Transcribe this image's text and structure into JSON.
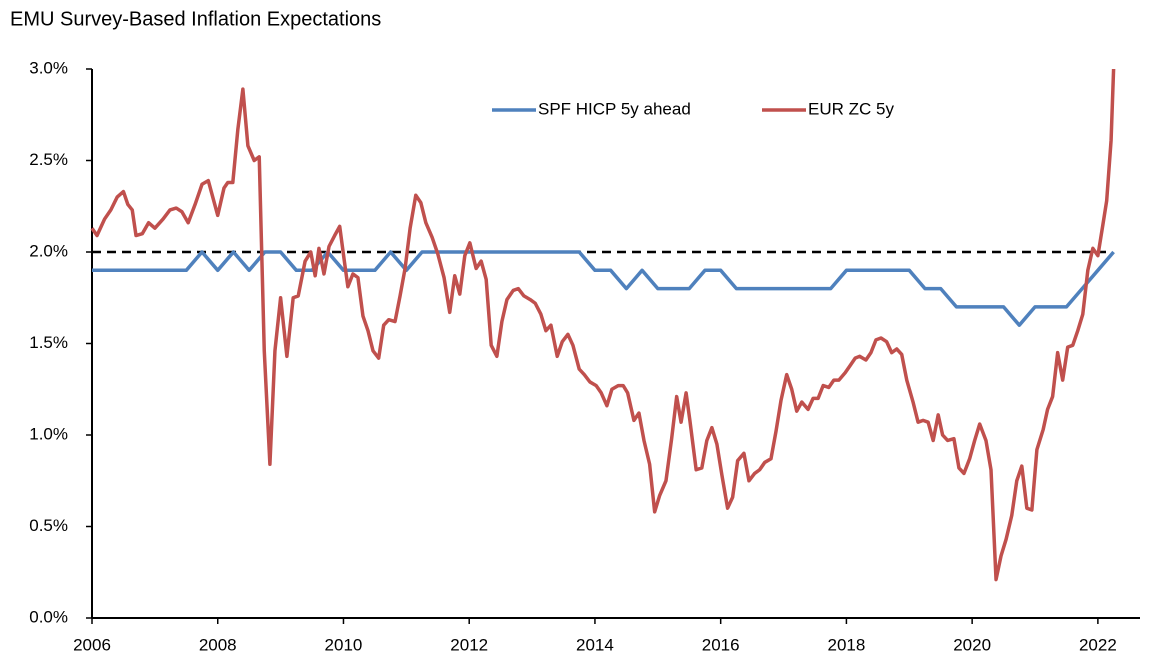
{
  "chart_data": {
    "type": "line",
    "title": "EMU Survey-Based Inflation Expectations",
    "xlim": [
      2006,
      2022.67
    ],
    "xticks": [
      2006,
      2008,
      2010,
      2012,
      2014,
      2016,
      2018,
      2020,
      2022
    ],
    "ylim": [
      0,
      3
    ],
    "yticks": [
      {
        "value": 0,
        "label": "0.0%"
      },
      {
        "value": 0.5,
        "label": "0.5%"
      },
      {
        "value": 1,
        "label": "1.0%"
      },
      {
        "value": 1.5,
        "label": "1.5%"
      },
      {
        "value": 2,
        "label": "2.0%"
      },
      {
        "value": 2.5,
        "label": "2.5%"
      },
      {
        "value": 3,
        "label": "3.0%"
      }
    ],
    "grid": false,
    "legend": "top",
    "reference_lines": [
      {
        "value": 2,
        "color": "#000000",
        "dash": true
      }
    ],
    "series": [
      {
        "name": "SPF HICP 5y ahead",
        "color": "#4f81bd",
        "x": [
          2006,
          2006.25,
          2006.5,
          2006.75,
          2007,
          2007.25,
          2007.5,
          2007.75,
          2008,
          2008.25,
          2008.5,
          2008.75,
          2009,
          2009.25,
          2009.5,
          2009.75,
          2010,
          2010.25,
          2010.5,
          2010.75,
          2011,
          2011.25,
          2011.5,
          2011.75,
          2012,
          2012.25,
          2012.5,
          2012.75,
          2013,
          2013.25,
          2013.5,
          2013.75,
          2014,
          2014.25,
          2014.5,
          2014.75,
          2015,
          2015.25,
          2015.5,
          2015.75,
          2016,
          2016.25,
          2016.5,
          2016.75,
          2017,
          2017.25,
          2017.5,
          2017.75,
          2018,
          2018.25,
          2018.5,
          2018.75,
          2019,
          2019.25,
          2019.5,
          2019.75,
          2020,
          2020.25,
          2020.5,
          2020.75,
          2021,
          2021.25,
          2021.5,
          2021.75,
          2022,
          2022.25
        ],
        "values": [
          1.9,
          1.9,
          1.9,
          1.9,
          1.9,
          1.9,
          1.9,
          2.0,
          1.9,
          2.0,
          1.9,
          2.0,
          2.0,
          1.9,
          1.9,
          2.0,
          1.9,
          1.9,
          1.9,
          2.0,
          1.9,
          2.0,
          2.0,
          2.0,
          2.0,
          2.0,
          2.0,
          2.0,
          2.0,
          2.0,
          2.0,
          2.0,
          1.9,
          1.9,
          1.8,
          1.9,
          1.8,
          1.8,
          1.8,
          1.9,
          1.9,
          1.8,
          1.8,
          1.8,
          1.8,
          1.8,
          1.8,
          1.8,
          1.9,
          1.9,
          1.9,
          1.9,
          1.9,
          1.8,
          1.8,
          1.7,
          1.7,
          1.7,
          1.7,
          1.6,
          1.7,
          1.7,
          1.7,
          1.8,
          1.9,
          2.0
        ]
      },
      {
        "name": "EUR ZC 5y",
        "color": "#c0504d",
        "x": [
          2006.0,
          2006.08,
          2006.2,
          2006.3,
          2006.4,
          2006.5,
          2006.57,
          2006.64,
          2006.7,
          2006.8,
          2006.9,
          2007.0,
          2007.13,
          2007.24,
          2007.34,
          2007.43,
          2007.53,
          2007.64,
          2007.75,
          2007.85,
          2008.0,
          2008.1,
          2008.16,
          2008.24,
          2008.32,
          2008.4,
          2008.48,
          2008.58,
          2008.66,
          2008.74,
          2008.83,
          2008.91,
          2009.0,
          2009.1,
          2009.2,
          2009.28,
          2009.39,
          2009.48,
          2009.55,
          2009.61,
          2009.69,
          2009.77,
          2009.86,
          2009.94,
          2010.01,
          2010.07,
          2010.15,
          2010.23,
          2010.31,
          2010.39,
          2010.47,
          2010.56,
          2010.64,
          2010.72,
          2010.82,
          2010.9,
          2010.98,
          2011.06,
          2011.15,
          2011.23,
          2011.31,
          2011.41,
          2011.5,
          2011.6,
          2011.69,
          2011.77,
          2011.85,
          2011.93,
          2012.01,
          2012.11,
          2012.19,
          2012.27,
          2012.35,
          2012.44,
          2012.52,
          2012.6,
          2012.7,
          2012.78,
          2012.87,
          2012.97,
          2013.05,
          2013.14,
          2013.22,
          2013.3,
          2013.4,
          2013.48,
          2013.57,
          2013.65,
          2013.75,
          2013.83,
          2013.92,
          2014.02,
          2014.1,
          2014.19,
          2014.27,
          2014.37,
          2014.45,
          2014.52,
          2014.62,
          2014.7,
          2014.78,
          2014.87,
          2014.95,
          2015.03,
          2015.13,
          2015.22,
          2015.3,
          2015.37,
          2015.45,
          2015.51,
          2015.61,
          2015.7,
          2015.78,
          2015.86,
          2015.94,
          2016.02,
          2016.11,
          2016.19,
          2016.27,
          2016.37,
          2016.45,
          2016.54,
          2016.62,
          2016.7,
          2016.8,
          2016.88,
          2016.96,
          2017.05,
          2017.13,
          2017.21,
          2017.29,
          2017.39,
          2017.47,
          2017.55,
          2017.63,
          2017.72,
          2017.8,
          2017.88,
          2017.98,
          2018.06,
          2018.14,
          2018.21,
          2018.31,
          2018.39,
          2018.47,
          2018.55,
          2018.64,
          2018.72,
          2018.8,
          2018.88,
          2018.96,
          2019.06,
          2019.14,
          2019.22,
          2019.3,
          2019.38,
          2019.46,
          2019.53,
          2019.61,
          2019.71,
          2019.79,
          2019.87,
          2019.96,
          2020.04,
          2020.12,
          2020.22,
          2020.3,
          2020.38,
          2020.46,
          2020.54,
          2020.63,
          2020.71,
          2020.79,
          2020.87,
          2020.95,
          2021.03,
          2021.13,
          2021.2,
          2021.28,
          2021.36,
          2021.44,
          2021.52,
          2021.6,
          2021.68,
          2021.76,
          2021.84,
          2021.92,
          2022.0,
          2022.08,
          2022.14,
          2022.21,
          2022.25
        ],
        "values": [
          2.13,
          2.09,
          2.18,
          2.23,
          2.3,
          2.33,
          2.26,
          2.23,
          2.09,
          2.1,
          2.16,
          2.13,
          2.18,
          2.23,
          2.24,
          2.22,
          2.16,
          2.26,
          2.37,
          2.39,
          2.2,
          2.35,
          2.38,
          2.38,
          2.67,
          2.89,
          2.58,
          2.5,
          2.52,
          1.46,
          0.84,
          1.46,
          1.75,
          1.43,
          1.75,
          1.76,
          1.95,
          2.0,
          1.87,
          2.02,
          1.88,
          2.03,
          2.09,
          2.14,
          1.96,
          1.81,
          1.88,
          1.86,
          1.65,
          1.57,
          1.46,
          1.42,
          1.6,
          1.63,
          1.62,
          1.76,
          1.91,
          2.13,
          2.31,
          2.27,
          2.16,
          2.08,
          1.99,
          1.86,
          1.67,
          1.87,
          1.77,
          1.98,
          2.05,
          1.91,
          1.95,
          1.85,
          1.49,
          1.43,
          1.62,
          1.74,
          1.79,
          1.8,
          1.76,
          1.74,
          1.72,
          1.66,
          1.57,
          1.6,
          1.43,
          1.51,
          1.55,
          1.49,
          1.36,
          1.33,
          1.29,
          1.27,
          1.23,
          1.16,
          1.25,
          1.27,
          1.27,
          1.23,
          1.08,
          1.12,
          0.97,
          0.84,
          0.58,
          0.67,
          0.75,
          0.98,
          1.21,
          1.07,
          1.23,
          1.08,
          0.81,
          0.82,
          0.97,
          1.04,
          0.95,
          0.78,
          0.6,
          0.66,
          0.86,
          0.9,
          0.75,
          0.79,
          0.81,
          0.85,
          0.87,
          1.02,
          1.19,
          1.33,
          1.25,
          1.13,
          1.18,
          1.14,
          1.2,
          1.2,
          1.27,
          1.26,
          1.3,
          1.3,
          1.34,
          1.38,
          1.42,
          1.43,
          1.41,
          1.45,
          1.52,
          1.53,
          1.51,
          1.45,
          1.47,
          1.44,
          1.3,
          1.18,
          1.07,
          1.08,
          1.07,
          0.97,
          1.11,
          1.0,
          0.97,
          0.98,
          0.82,
          0.79,
          0.87,
          0.97,
          1.06,
          0.97,
          0.81,
          0.21,
          0.34,
          0.43,
          0.56,
          0.75,
          0.83,
          0.6,
          0.59,
          0.92,
          1.03,
          1.14,
          1.21,
          1.45,
          1.3,
          1.48,
          1.49,
          1.57,
          1.66,
          1.9,
          2.02,
          1.98,
          2.15,
          2.28,
          2.61,
          3.0
        ]
      }
    ]
  }
}
